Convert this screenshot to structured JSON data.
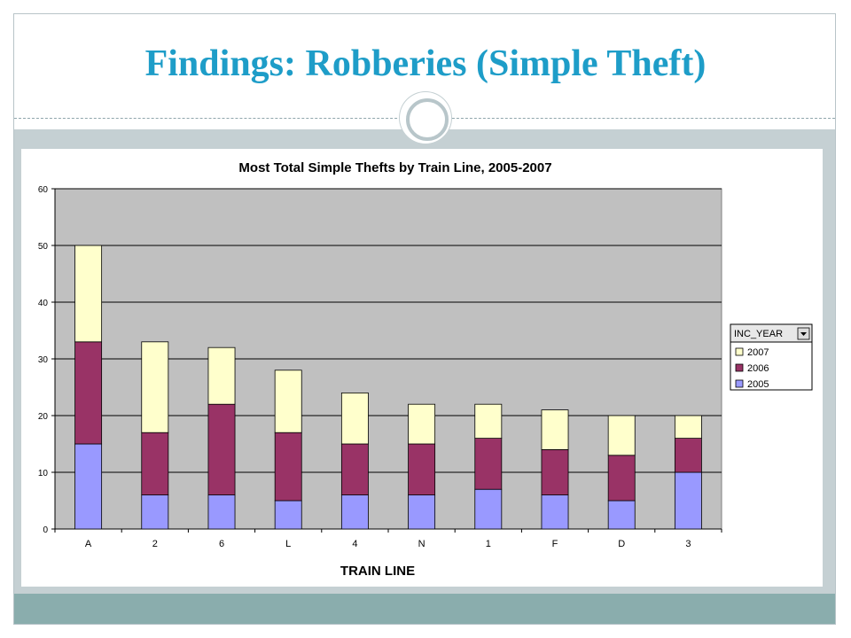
{
  "slide": {
    "title": "Findings: Robberies (Simple Theft)"
  },
  "chart_data": {
    "type": "bar",
    "stacked": true,
    "title": "Most Total Simple Thefts by Train Line, 2005-2007",
    "xlabel": "TRAIN LINE",
    "ylabel": "",
    "ylim": [
      0,
      60
    ],
    "yticks": [
      0,
      10,
      20,
      30,
      40,
      50,
      60
    ],
    "grid": true,
    "categories": [
      "A",
      "2",
      "6",
      "L",
      "4",
      "N",
      "1",
      "F",
      "D",
      "3"
    ],
    "series": [
      {
        "name": "2005",
        "color": "#9999ff",
        "values": [
          15,
          6,
          6,
          5,
          6,
          6,
          7,
          6,
          5,
          10
        ]
      },
      {
        "name": "2006",
        "color": "#993366",
        "values": [
          18,
          11,
          16,
          12,
          9,
          9,
          9,
          8,
          8,
          6
        ]
      },
      {
        "name": "2007",
        "color": "#ffffcc",
        "values": [
          17,
          16,
          10,
          11,
          9,
          7,
          6,
          7,
          7,
          4
        ]
      }
    ],
    "legend": {
      "placement": "right",
      "header": "INC_YEAR",
      "order": [
        "2007",
        "2006",
        "2005"
      ]
    },
    "plot_background": "#c0c0c0"
  }
}
